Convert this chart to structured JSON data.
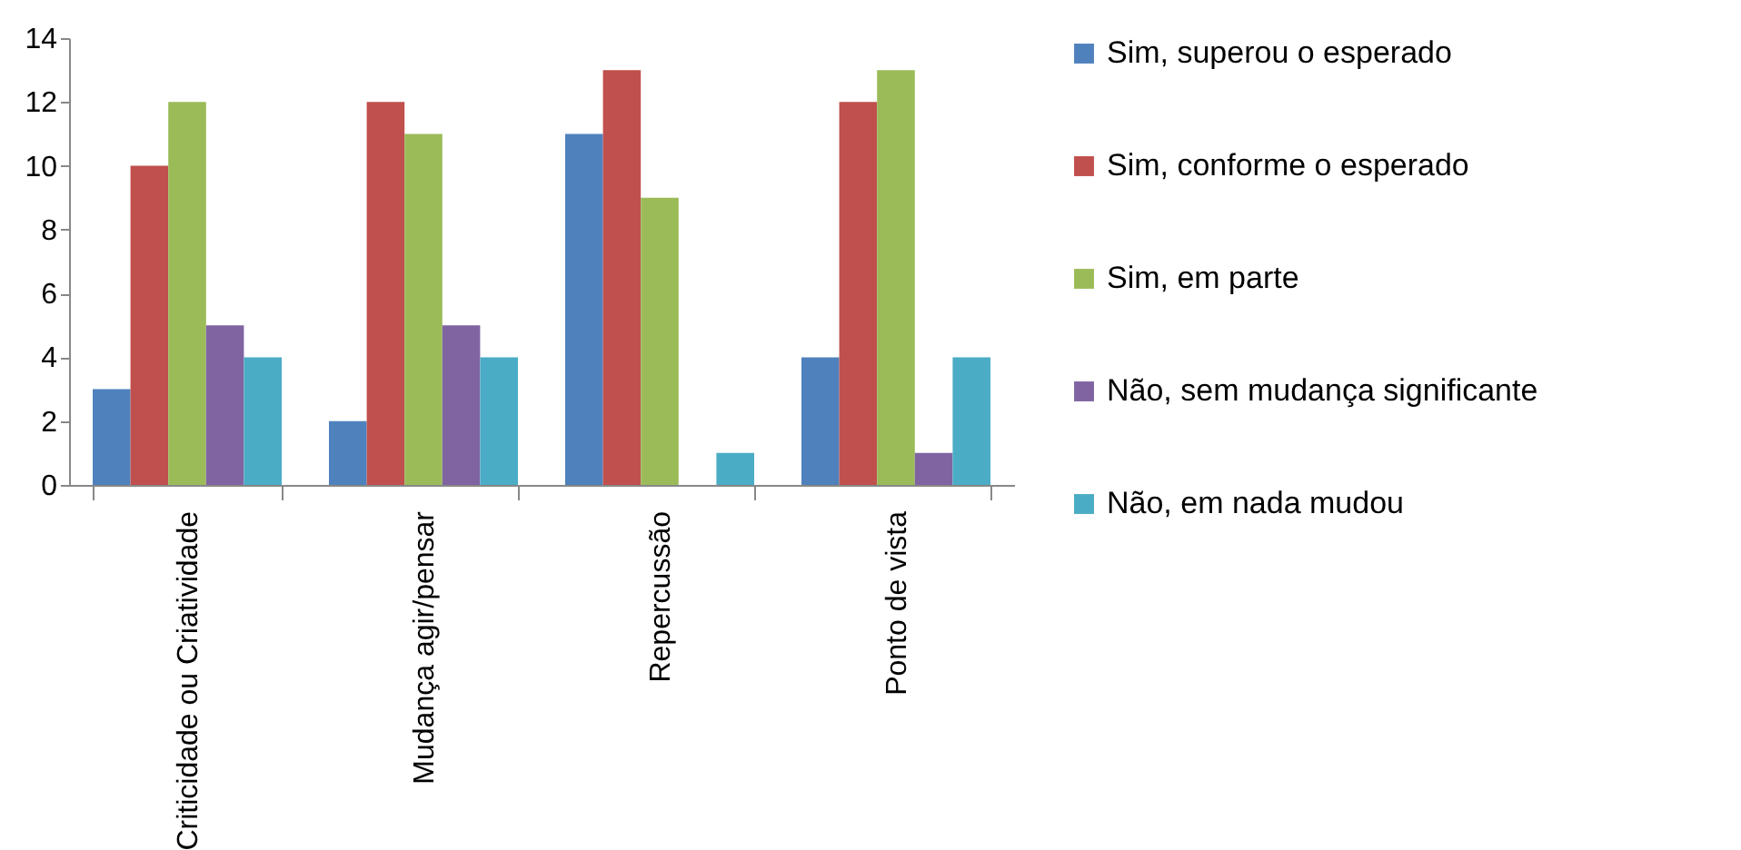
{
  "chart_data": {
    "type": "bar",
    "categories": [
      "Criticidade ou Criatividade",
      "Mudança agir/pensar",
      "Repercussão",
      "Ponto de vista"
    ],
    "series": [
      {
        "name": "Sim, superou o esperado",
        "color": "#4f81bd",
        "values": [
          3,
          2,
          11,
          4
        ]
      },
      {
        "name": "Sim, conforme o esperado",
        "color": "#c0504d",
        "values": [
          10,
          12,
          13,
          12
        ]
      },
      {
        "name": "Sim, em parte",
        "color": "#9bbb59",
        "values": [
          12,
          11,
          9,
          13
        ]
      },
      {
        "name": "Não, sem mudança significante",
        "color": "#8064a2",
        "values": [
          5,
          5,
          0,
          1
        ]
      },
      {
        "name": "Não, em nada mudou",
        "color": "#4bacc6",
        "values": [
          4,
          4,
          1,
          4
        ]
      }
    ],
    "ylim": [
      0,
      14
    ],
    "yticks": [
      0,
      2,
      4,
      6,
      8,
      10,
      12,
      14
    ],
    "grid": false,
    "legend": "right"
  }
}
